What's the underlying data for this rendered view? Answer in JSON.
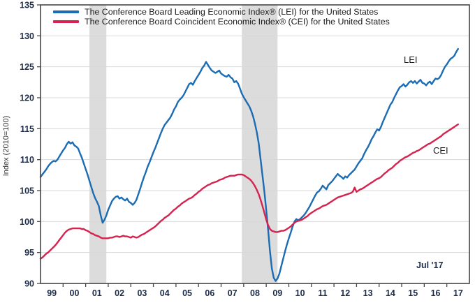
{
  "chart": {
    "y_axis_title": "Index (2010=100)",
    "legend": [
      {
        "label": "The Conference Board Leading Economic Index® (LEI) for the United States",
        "color": "#1b6cb3"
      },
      {
        "label": "The Conference Board Coincident Economic Index® (CEI) for the United States",
        "color": "#d5224e"
      }
    ],
    "annotations": {
      "lei_label": "LEI",
      "cei_label": "CEI",
      "last_point_label": "Jul '17"
    }
  },
  "chart_data": {
    "type": "line",
    "title": "",
    "xlabel": "",
    "ylabel": "Index (2010=100)",
    "x_start_year": 1999,
    "x_step_months": 1,
    "x_end_label": "Jul '17",
    "xlim": [
      1999.0,
      2018.0
    ],
    "ylim": [
      90,
      135
    ],
    "y_ticks": [
      90,
      95,
      100,
      105,
      110,
      115,
      120,
      125,
      130,
      135
    ],
    "x_tick_years": [
      2000,
      2001,
      2002,
      2003,
      2004,
      2005,
      2006,
      2007,
      2008,
      2009,
      2010,
      2011,
      2012,
      2013,
      2014,
      2015,
      2016,
      2017
    ],
    "x_tick_labels": [
      "99",
      "00",
      "01",
      "02",
      "03",
      "04",
      "05",
      "06",
      "07",
      "08",
      "09",
      "10",
      "11",
      "12",
      "13",
      "14",
      "15",
      "16",
      "17"
    ],
    "grid": "horizontal",
    "legend_position": "top-left-inside",
    "recession_bands": [
      [
        2001.167,
        2001.917
      ],
      [
        2007.917,
        2009.5
      ]
    ],
    "colors": {
      "lei": "#1b6cb3",
      "cei": "#d5224e",
      "recession_band": "#dcdcdc",
      "gridline": "#d8d8d8",
      "frame": "#454545",
      "tick_label": "#1e2c49"
    },
    "series": [
      {
        "name": "LEI",
        "color": "#1b6cb3",
        "values": [
          107.2,
          107.6,
          108.0,
          108.4,
          108.9,
          109.3,
          109.6,
          109.8,
          109.7,
          110.0,
          110.5,
          111.0,
          111.5,
          111.9,
          112.5,
          112.9,
          112.6,
          112.8,
          112.3,
          112.1,
          111.8,
          111.0,
          110.3,
          109.4,
          108.5,
          107.6,
          106.6,
          105.6,
          104.6,
          103.8,
          103.2,
          102.5,
          101.0,
          99.8,
          100.3,
          101.0,
          101.9,
          102.6,
          103.3,
          103.7,
          104.0,
          104.1,
          103.7,
          103.9,
          103.6,
          103.4,
          103.7,
          103.2,
          103.0,
          102.7,
          103.0,
          103.5,
          104.4,
          105.3,
          106.3,
          107.2,
          108.0,
          108.9,
          109.6,
          110.4,
          111.2,
          111.9,
          112.7,
          113.5,
          114.3,
          115.0,
          115.6,
          116.0,
          116.4,
          116.8,
          117.4,
          118.1,
          118.6,
          119.3,
          119.7,
          120.0,
          120.4,
          121.0,
          121.6,
          122.2,
          122.4,
          122.1,
          122.7,
          123.2,
          123.7,
          124.2,
          124.8,
          125.2,
          125.8,
          125.3,
          124.8,
          124.4,
          124.2,
          124.0,
          124.2,
          124.4,
          123.9,
          123.7,
          123.5,
          123.4,
          123.7,
          123.3,
          123.1,
          122.5,
          122.7,
          122.3,
          121.5,
          120.7,
          120.1,
          119.6,
          119.1,
          118.6,
          117.9,
          117.0,
          115.8,
          114.4,
          112.6,
          110.0,
          107.4,
          104.8,
          101.8,
          98.6,
          95.2,
          92.4,
          90.9,
          90.4,
          90.8,
          91.6,
          92.8,
          94.0,
          95.2,
          96.3,
          97.3,
          98.2,
          99.2,
          100.0,
          100.4,
          100.2,
          100.4,
          100.7,
          101.0,
          101.4,
          101.9,
          102.4,
          103.0,
          103.6,
          104.2,
          104.7,
          104.9,
          105.3,
          105.8,
          105.5,
          105.2,
          105.9,
          106.2,
          106.5,
          106.9,
          107.3,
          107.7,
          107.4,
          107.2,
          106.9,
          107.3,
          107.1,
          107.5,
          107.8,
          108.1,
          108.4,
          108.9,
          109.4,
          109.8,
          110.2,
          110.9,
          111.5,
          112.0,
          112.6,
          113.3,
          113.8,
          114.4,
          114.9,
          114.7,
          115.3,
          116.1,
          116.8,
          117.5,
          118.2,
          118.9,
          119.3,
          120.0,
          120.6,
          121.2,
          121.7,
          121.9,
          122.2,
          121.8,
          122.1,
          122.5,
          122.7,
          122.4,
          122.7,
          122.3,
          122.6,
          122.9,
          122.4,
          122.3,
          122.0,
          122.4,
          122.6,
          122.2,
          122.7,
          123.1,
          123.0,
          123.2,
          123.7,
          124.4,
          125.0,
          125.4,
          125.9,
          126.3,
          126.5,
          126.8,
          127.4,
          127.9
        ]
      },
      {
        "name": "CEI",
        "color": "#d5224e",
        "values": [
          94.0,
          94.2,
          94.5,
          94.8,
          95.0,
          95.3,
          95.6,
          95.9,
          96.2,
          96.6,
          97.0,
          97.4,
          97.8,
          98.2,
          98.5,
          98.7,
          98.8,
          98.9,
          98.9,
          98.9,
          98.9,
          98.9,
          98.8,
          98.8,
          98.6,
          98.5,
          98.3,
          98.1,
          98.0,
          97.8,
          97.7,
          97.6,
          97.4,
          97.3,
          97.3,
          97.3,
          97.3,
          97.4,
          97.4,
          97.5,
          97.6,
          97.6,
          97.5,
          97.6,
          97.7,
          97.6,
          97.6,
          97.5,
          97.4,
          97.6,
          97.5,
          97.4,
          97.5,
          97.7,
          97.9,
          98.0,
          98.2,
          98.4,
          98.6,
          98.8,
          99.0,
          99.2,
          99.5,
          99.8,
          100.1,
          100.3,
          100.6,
          100.8,
          101.0,
          101.3,
          101.6,
          101.9,
          102.1,
          102.4,
          102.6,
          102.9,
          103.1,
          103.3,
          103.5,
          103.7,
          103.8,
          104.0,
          104.3,
          104.5,
          104.8,
          105.0,
          105.3,
          105.5,
          105.7,
          105.9,
          106.0,
          106.2,
          106.3,
          106.4,
          106.5,
          106.7,
          106.8,
          106.9,
          107.1,
          107.2,
          107.3,
          107.4,
          107.4,
          107.4,
          107.5,
          107.6,
          107.6,
          107.6,
          107.5,
          107.3,
          107.1,
          106.9,
          106.6,
          106.2,
          105.7,
          105.1,
          104.4,
          103.5,
          102.5,
          101.4,
          100.3,
          99.4,
          98.8,
          98.5,
          98.4,
          98.3,
          98.3,
          98.4,
          98.5,
          98.5,
          98.6,
          98.8,
          99.0,
          99.2,
          99.5,
          99.8,
          100.0,
          100.1,
          100.2,
          100.3,
          100.5,
          100.7,
          100.9,
          101.2,
          101.4,
          101.6,
          101.8,
          102.0,
          102.1,
          102.3,
          102.5,
          102.6,
          102.7,
          102.9,
          103.1,
          103.3,
          103.5,
          103.7,
          103.9,
          104.0,
          104.1,
          104.2,
          104.3,
          104.4,
          104.5,
          104.6,
          104.8,
          105.5,
          104.8,
          105.0,
          105.2,
          105.3,
          105.5,
          105.7,
          105.9,
          106.1,
          106.3,
          106.5,
          106.7,
          106.9,
          107.0,
          107.2,
          107.5,
          107.8,
          108.0,
          108.3,
          108.5,
          108.7,
          109.0,
          109.3,
          109.5,
          109.8,
          110.0,
          110.2,
          110.4,
          110.5,
          110.7,
          110.9,
          111.1,
          111.2,
          111.4,
          111.5,
          111.7,
          111.9,
          112.1,
          112.3,
          112.5,
          112.6,
          112.8,
          113.0,
          113.2,
          113.4,
          113.6,
          113.8,
          114.1,
          114.3,
          114.5,
          114.7,
          114.9,
          115.1,
          115.3,
          115.5,
          115.7
        ]
      }
    ]
  }
}
